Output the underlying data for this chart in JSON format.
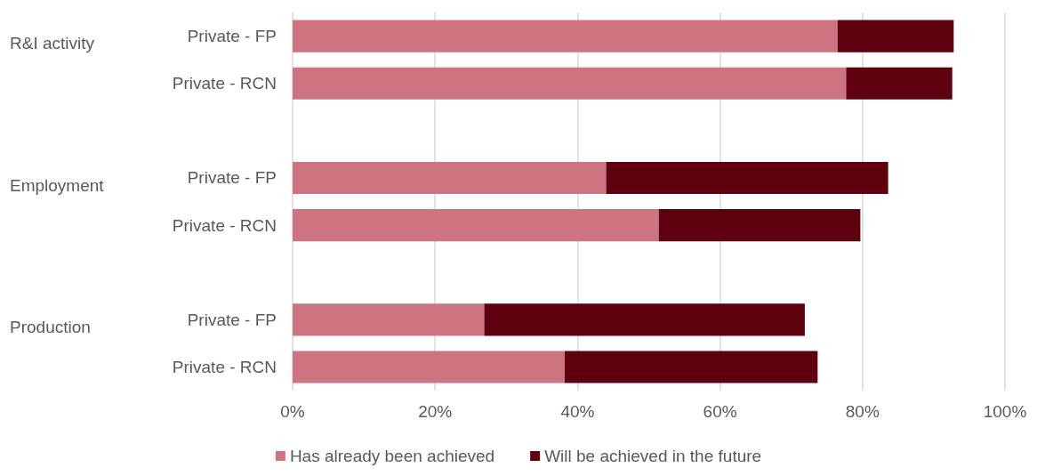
{
  "chart_data": {
    "type": "bar",
    "orientation": "horizontal",
    "stacked": true,
    "categories": [
      "Private - FP",
      "Private - RCN",
      null,
      "Private - FP",
      "Private - RCN",
      null,
      "Private - FP",
      "Private - RCN"
    ],
    "series": [
      {
        "name": "Has already been achieved",
        "color": "#cd7480",
        "values": [
          76.5,
          77.7,
          null,
          44.0,
          51.4,
          null,
          26.9,
          38.2
        ]
      },
      {
        "name": "Will be achieved in the future",
        "color": "#5e000e",
        "values": [
          16.3,
          14.9,
          null,
          39.6,
          28.3,
          null,
          45.0,
          35.5
        ]
      }
    ],
    "annotations": [
      "R&I activity",
      "Employment",
      "Production"
    ],
    "xlim": [
      0,
      100
    ],
    "xticks": [
      {
        "value": 0,
        "label": "0%"
      },
      {
        "value": 20,
        "label": "20%"
      },
      {
        "value": 40,
        "label": "40%"
      },
      {
        "value": 60,
        "label": "60%"
      },
      {
        "value": 80,
        "label": "80%"
      },
      {
        "value": 100,
        "label": "100%"
      }
    ],
    "grid": "x",
    "legend": "bottom"
  }
}
